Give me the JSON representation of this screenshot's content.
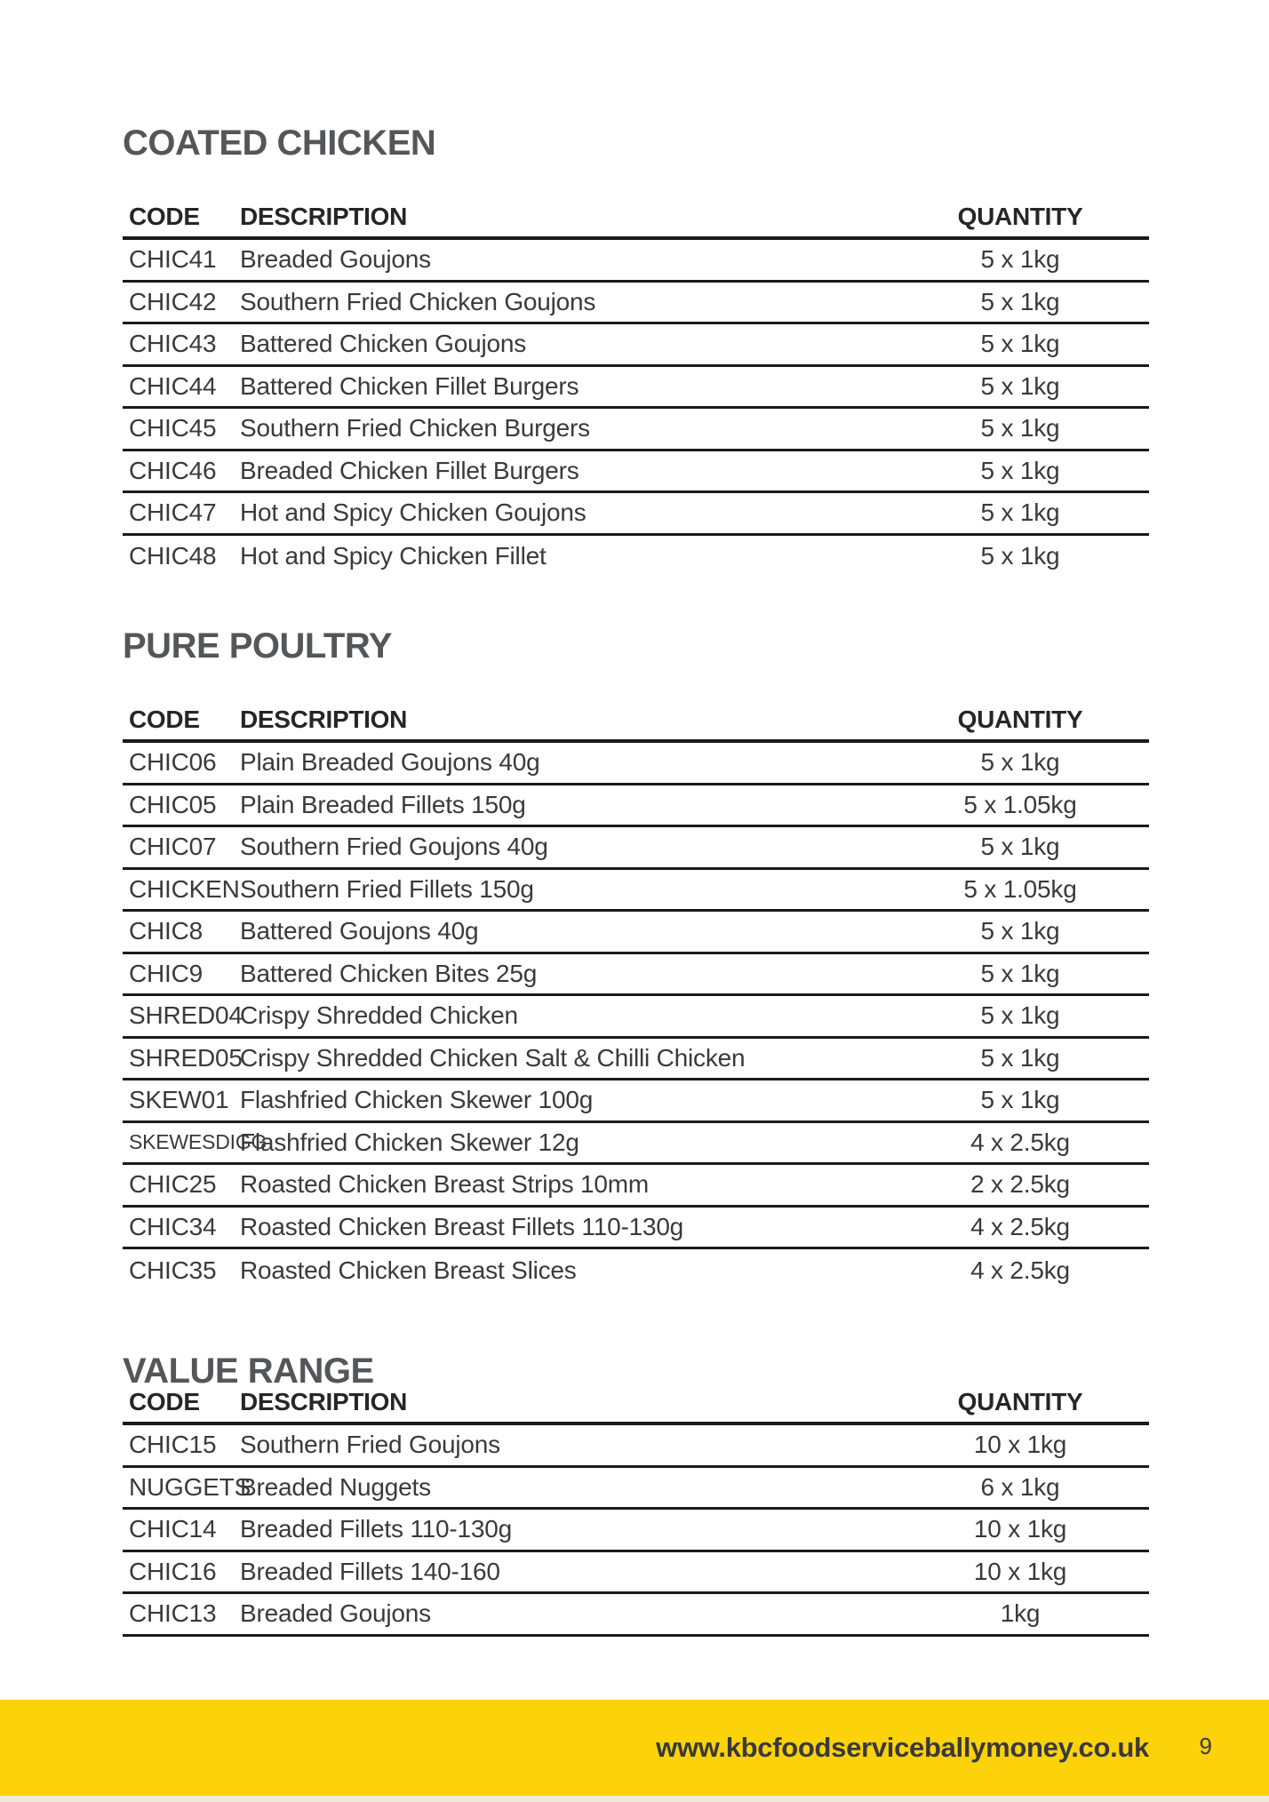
{
  "page": {
    "accent_yellow": "#fcd20b",
    "title_color": "#55565a",
    "line_color": "#1a1a1a"
  },
  "sections": [
    {
      "title": "COATED CHICKEN",
      "columns": [
        "CODE",
        "DESCRIPTION",
        "QUANTITY"
      ],
      "rows": [
        {
          "code": "CHIC41",
          "description": "Breaded Goujons",
          "quantity": "5 x 1kg"
        },
        {
          "code": "CHIC42",
          "description": "Southern Fried Chicken Goujons",
          "quantity": "5 x 1kg"
        },
        {
          "code": "CHIC43",
          "description": "Battered Chicken Goujons",
          "quantity": "5 x 1kg"
        },
        {
          "code": "CHIC44",
          "description": "Battered Chicken Fillet Burgers",
          "quantity": "5 x 1kg"
        },
        {
          "code": "CHIC45",
          "description": "Southern Fried Chicken Burgers",
          "quantity": "5 x 1kg"
        },
        {
          "code": "CHIC46",
          "description": "Breaded Chicken Fillet Burgers",
          "quantity": "5 x 1kg"
        },
        {
          "code": "CHIC47",
          "description": "Hot and Spicy Chicken Goujons",
          "quantity": "5 x 1kg"
        },
        {
          "code": "CHIC48",
          "description": "Hot and Spicy Chicken Fillet",
          "quantity": "5 x 1kg"
        }
      ]
    },
    {
      "title": "PURE POULTRY",
      "columns": [
        "CODE",
        "DESCRIPTION",
        "QUANTITY"
      ],
      "rows": [
        {
          "code": "CHIC06",
          "description": "Plain Breaded Goujons 40g",
          "quantity": "5 x 1kg"
        },
        {
          "code": "CHIC05",
          "description": "Plain Breaded Fillets 150g",
          "quantity": "5 x 1.05kg"
        },
        {
          "code": "CHIC07",
          "description": "Southern Fried Goujons 40g",
          "quantity": "5 x 1kg"
        },
        {
          "code": "CHICKEN",
          "description": "Southern Fried Fillets 150g",
          "quantity": "5 x 1.05kg"
        },
        {
          "code": "CHIC8",
          "description": "Battered Goujons 40g",
          "quantity": "5 x 1kg"
        },
        {
          "code": "CHIC9",
          "description": "Battered Chicken Bites 25g",
          "quantity": "5 x 1kg"
        },
        {
          "code": "SHRED04",
          "description": "Crispy Shredded Chicken",
          "quantity": "5 x 1kg"
        },
        {
          "code": "SHRED05",
          "description": "Crispy Shredded Chicken Salt & Chilli Chicken",
          "quantity": "5 x 1kg"
        },
        {
          "code": "SKEW01",
          "description": "Flashfried Chicken Skewer 100g",
          "quantity": "5 x 1kg"
        },
        {
          "code": "SKEWESDIGG",
          "description": "Flashfried Chicken Skewer 12g",
          "quantity": "4 x 2.5kg"
        },
        {
          "code": "CHIC25",
          "description": "Roasted Chicken Breast Strips 10mm",
          "quantity": "2 x 2.5kg"
        },
        {
          "code": "CHIC34",
          "description": "Roasted Chicken Breast Fillets 110-130g",
          "quantity": "4 x 2.5kg"
        },
        {
          "code": "CHIC35",
          "description": "Roasted Chicken Breast Slices",
          "quantity": "4 x 2.5kg"
        }
      ]
    },
    {
      "title": "VALUE RANGE",
      "columns": [
        "CODE",
        "DESCRIPTION",
        "QUANTITY"
      ],
      "rows": [
        {
          "code": "CHIC15",
          "description": "Southern Fried Goujons",
          "quantity": "10 x 1kg"
        },
        {
          "code": "NUGGETS",
          "description": "Breaded Nuggets",
          "quantity": "6 x 1kg"
        },
        {
          "code": "CHIC14",
          "description": "Breaded Fillets 110-130g",
          "quantity": "10 x 1kg"
        },
        {
          "code": "CHIC16",
          "description": "Breaded Fillets 140-160",
          "quantity": "10 x 1kg"
        },
        {
          "code": "CHIC13",
          "description": "Breaded Goujons",
          "quantity": "1kg"
        }
      ]
    }
  ],
  "footer": {
    "website": "www.kbcfoodserviceballymoney.co.uk",
    "page_number": "9"
  }
}
